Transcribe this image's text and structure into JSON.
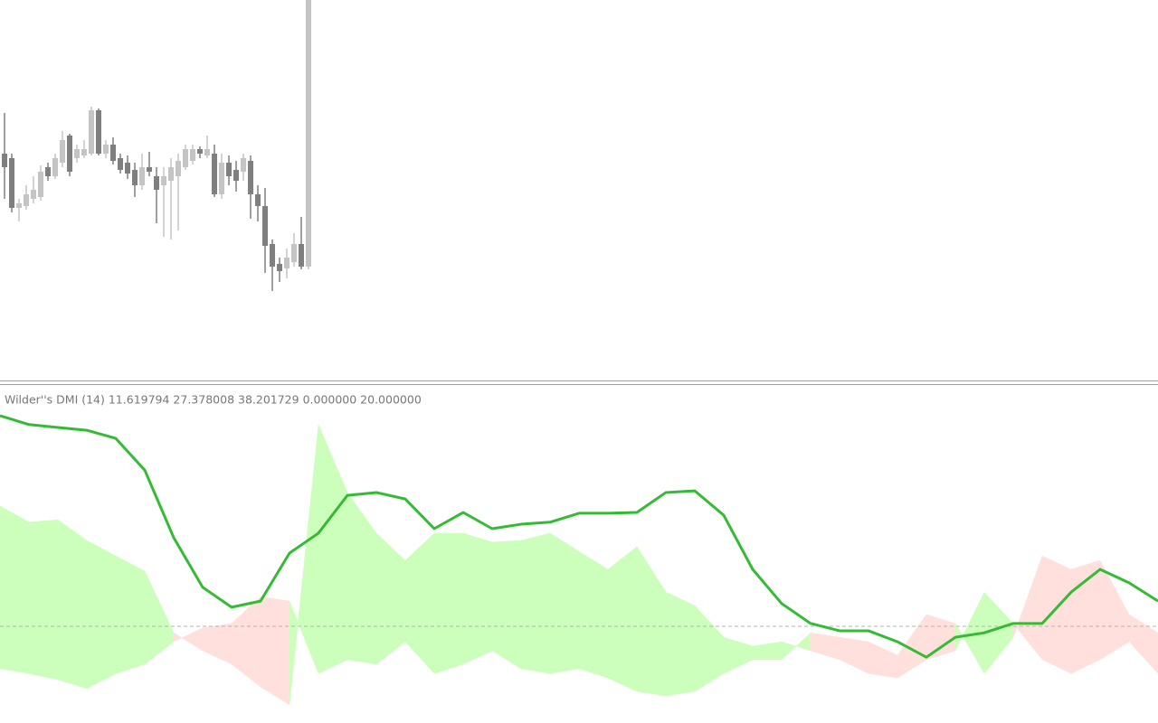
{
  "chart_data": [
    {
      "type": "candlestick",
      "open": [
        250,
        245,
        190,
        192,
        200,
        202,
        235,
        225,
        240,
        270,
        245,
        248,
        250,
        298,
        250,
        260,
        245,
        240,
        232,
        215,
        235,
        225,
        215,
        220,
        225,
        235,
        242,
        255,
        248,
        250,
        205,
        240,
        232,
        230,
        242,
        205,
        192,
        150,
        128,
        123,
        130,
        150,
        125
      ],
      "high": [
        295,
        250,
        200,
        215,
        225,
        237,
        240,
        250,
        275,
        272,
        260,
        265,
        302,
        300,
        265,
        268,
        250,
        248,
        240,
        250,
        252,
        235,
        235,
        245,
        250,
        260,
        260,
        258,
        270,
        260,
        250,
        248,
        242,
        250,
        248,
        215,
        212,
        155,
        135,
        145,
        162,
        180,
        420
      ],
      "low": [
        200,
        185,
        175,
        188,
        195,
        198,
        220,
        222,
        235,
        225,
        240,
        245,
        248,
        248,
        245,
        238,
        228,
        222,
        202,
        210,
        225,
        173,
        158,
        155,
        165,
        232,
        238,
        245,
        245,
        202,
        200,
        215,
        208,
        220,
        178,
        175,
        118,
        98,
        108,
        112,
        125,
        122,
        122
      ],
      "close": [
        235,
        190,
        195,
        205,
        210,
        230,
        225,
        245,
        265,
        230,
        255,
        255,
        298,
        250,
        260,
        242,
        232,
        228,
        215,
        235,
        230,
        210,
        225,
        235,
        242,
        255,
        255,
        250,
        255,
        205,
        240,
        225,
        220,
        245,
        205,
        192,
        148,
        125,
        120,
        135,
        150,
        125,
        420
      ],
      "up_color": "#c4c4c4",
      "down_color": "#7f7f7f",
      "ylim": [
        0,
        420
      ]
    },
    {
      "type": "dmi",
      "title": "Wilder''s DMI (14) 11.619794 27.378008 38.201729 0.000000 20.000000",
      "series": [
        {
          "values": [
            49.6,
            45.6,
            46.2,
            41.1,
            37.3,
            33.6,
            18.4,
            14.0,
            10.7,
            5.1,
            0.7,
            69.6,
            52.9,
            42.9,
            36.2,
            42.9,
            42.9,
            40.7,
            41.1,
            42.9,
            38.4,
            34.0,
            39.6,
            28.4,
            25.1,
            17.3,
            15.1,
            16.2,
            14.0,
            11.8,
            8.4,
            7.3,
            11.8,
            14.0,
            28.4,
            20.7,
            11.8,
            8.4,
            11.8,
            16.2,
            8.4
          ]
        },
        {
          "values": [
            9.6,
            8.4,
            6.9,
            4.7,
            8.4,
            10.7,
            16.2,
            19.6,
            20.7,
            27.3,
            26.2,
            8.4,
            11.8,
            10.7,
            16.2,
            8.4,
            10.7,
            14.0,
            9.6,
            8.4,
            9.6,
            7.3,
            4.0,
            2.9,
            4.0,
            8.4,
            11.8,
            11.8,
            18.4,
            17.3,
            16.2,
            12.9,
            22.9,
            20.7,
            8.4,
            17.3,
            37.3,
            34.0,
            36.2,
            22.9,
            18.4
          ]
        },
        {
          "color": "#33bb33",
          "values": [
            71.8,
            69.6,
            68.9,
            68.2,
            66.2,
            58.4,
            41.8,
            29.6,
            24.7,
            26.2,
            38.0,
            42.9,
            52.2,
            52.9,
            51.3,
            44.0,
            48.0,
            44.0,
            45.1,
            45.6,
            47.8,
            47.8,
            48.0,
            52.9,
            53.3,
            47.3,
            34.0,
            25.6,
            20.7,
            18.9,
            18.9,
            16.2,
            12.4,
            17.3,
            18.4,
            20.7,
            20.7,
            28.4,
            34.0,
            30.7,
            26.2
          ]
        }
      ],
      "fill_up": "#ccffbb",
      "fill_down": "#ffe0dc",
      "level": 20,
      "level_color": "#b4b4b4",
      "ylim": [
        0,
        75
      ]
    }
  ]
}
